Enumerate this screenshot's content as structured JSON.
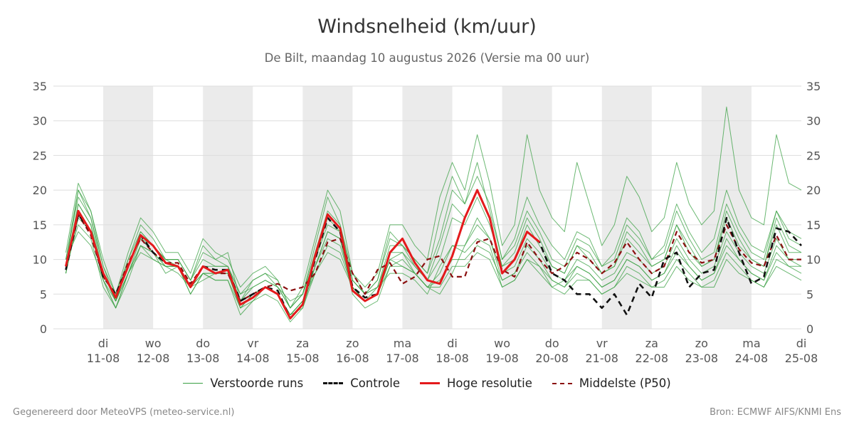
{
  "title": "Windsnelheid (km/uur)",
  "subtitle": "De Bilt, maandag 10 augustus 2026 (Versie ma 00 uur)",
  "footer_left": "Gegenereerd door MeteoVPS (meteo-service.nl)",
  "footer_right": "Bron: ECMWF AIFS/KNMI Ens",
  "legend": [
    {
      "label": "Verstoorde runs",
      "color": "#39a043",
      "style": "thin"
    },
    {
      "label": "Controle",
      "color": "#111111",
      "style": "dashed"
    },
    {
      "label": "Hoge resolutie",
      "color": "#e41a1c",
      "style": "solid"
    },
    {
      "label": "Middelste (P50)",
      "color": "#8b1010",
      "style": "dashed"
    }
  ],
  "colors": {
    "ensemble": "#39a043",
    "control": "#111111",
    "hires": "#e41a1c",
    "median": "#8b1010",
    "shade": "#ebebeb",
    "grid": "#dddddd"
  },
  "chart_data": {
    "type": "line",
    "ylim": [
      0,
      35
    ],
    "yticks": [
      0,
      5,
      10,
      15,
      20,
      25,
      30,
      35
    ],
    "xlim": [
      "2026-08-10T00:00",
      "2026-08-25T00:00"
    ],
    "shaded_days": [
      "2026-08-11",
      "2026-08-13",
      "2026-08-15",
      "2026-08-17",
      "2026-08-19",
      "2026-08-21",
      "2026-08-23"
    ],
    "x_tick_labels": [
      {
        "date": "2026-08-11",
        "day": "di",
        "label": "11-08"
      },
      {
        "date": "2026-08-12",
        "day": "wo",
        "label": "12-08"
      },
      {
        "date": "2026-08-13",
        "day": "do",
        "label": "13-08"
      },
      {
        "date": "2026-08-14",
        "day": "vr",
        "label": "14-08"
      },
      {
        "date": "2026-08-15",
        "day": "za",
        "label": "15-08"
      },
      {
        "date": "2026-08-16",
        "day": "zo",
        "label": "16-08"
      },
      {
        "date": "2026-08-17",
        "day": "ma",
        "label": "17-08"
      },
      {
        "date": "2026-08-18",
        "day": "di",
        "label": "18-08"
      },
      {
        "date": "2026-08-19",
        "day": "wo",
        "label": "19-08"
      },
      {
        "date": "2026-08-20",
        "day": "do",
        "label": "20-08"
      },
      {
        "date": "2026-08-21",
        "day": "vr",
        "label": "21-08"
      },
      {
        "date": "2026-08-22",
        "day": "za",
        "label": "22-08"
      },
      {
        "date": "2026-08-23",
        "day": "zo",
        "label": "23-08"
      },
      {
        "date": "2026-08-24",
        "day": "ma",
        "label": "24-08"
      },
      {
        "date": "2026-08-25",
        "day": "di",
        "label": "25-08"
      }
    ],
    "x": [
      "2026-08-10T06:00",
      "2026-08-10T12:00",
      "2026-08-10T18:00",
      "2026-08-11T00:00",
      "2026-08-11T06:00",
      "2026-08-11T12:00",
      "2026-08-11T18:00",
      "2026-08-12T00:00",
      "2026-08-12T06:00",
      "2026-08-12T12:00",
      "2026-08-12T18:00",
      "2026-08-13T00:00",
      "2026-08-13T06:00",
      "2026-08-13T12:00",
      "2026-08-13T18:00",
      "2026-08-14T00:00",
      "2026-08-14T06:00",
      "2026-08-14T12:00",
      "2026-08-14T18:00",
      "2026-08-15T00:00",
      "2026-08-15T06:00",
      "2026-08-15T12:00",
      "2026-08-15T18:00",
      "2026-08-16T00:00",
      "2026-08-16T06:00",
      "2026-08-16T12:00",
      "2026-08-16T18:00",
      "2026-08-17T00:00",
      "2026-08-17T06:00",
      "2026-08-17T12:00",
      "2026-08-17T18:00",
      "2026-08-18T00:00",
      "2026-08-18T06:00",
      "2026-08-18T12:00",
      "2026-08-18T18:00",
      "2026-08-19T00:00",
      "2026-08-19T06:00",
      "2026-08-19T12:00",
      "2026-08-19T18:00",
      "2026-08-20T00:00",
      "2026-08-20T06:00",
      "2026-08-20T12:00",
      "2026-08-20T18:00",
      "2026-08-21T00:00",
      "2026-08-21T06:00",
      "2026-08-21T12:00",
      "2026-08-21T18:00",
      "2026-08-22T00:00",
      "2026-08-22T06:00",
      "2026-08-22T12:00",
      "2026-08-22T18:00",
      "2026-08-23T00:00",
      "2026-08-23T06:00",
      "2026-08-23T12:00",
      "2026-08-23T18:00",
      "2026-08-24T00:00",
      "2026-08-24T06:00",
      "2026-08-24T12:00",
      "2026-08-24T18:00",
      "2026-08-25T00:00"
    ],
    "series": [
      {
        "name": "Hoge resolutie",
        "values": [
          9,
          17,
          14,
          8,
          4.5,
          9,
          13.5,
          12,
          9.5,
          9,
          6,
          9,
          8,
          8.5,
          3.5,
          4.5,
          6,
          5,
          1.5,
          3.5,
          10.5,
          16.5,
          14.5,
          5.5,
          4,
          5,
          11,
          13,
          9.5,
          7,
          6.5,
          10.5,
          16,
          20,
          16,
          8,
          10,
          14,
          12.5,
          null,
          null,
          null,
          null,
          null,
          null,
          null,
          null,
          null,
          null,
          null,
          null,
          null,
          null,
          null,
          null,
          null,
          null,
          null,
          null,
          null
        ]
      },
      {
        "name": "Controle",
        "values": [
          8.5,
          16.5,
          14,
          7.5,
          5,
          9,
          13.5,
          11,
          9.5,
          9,
          6,
          9,
          8.5,
          8.5,
          4,
          5,
          6,
          5.5,
          1.5,
          3.5,
          10,
          16,
          14,
          6,
          4.5,
          5,
          11,
          13,
          9.5,
          7,
          6.5,
          10.5,
          16,
          20,
          16,
          8,
          10,
          14,
          12.5,
          8,
          7,
          5,
          5,
          3,
          5,
          2,
          6.5,
          4.5,
          10,
          11,
          6,
          8,
          8.5,
          16,
          11,
          6.5,
          7.5,
          14.5,
          14,
          12
        ]
      },
      {
        "name": "Middelste (P50)",
        "values": [
          9,
          16.5,
          13.5,
          7.5,
          5,
          9.5,
          13,
          11,
          9.5,
          9.5,
          6.5,
          9,
          8,
          8,
          4,
          5,
          6,
          6.5,
          5.5,
          6,
          8,
          12.5,
          13,
          8,
          5,
          8.5,
          9.5,
          6.5,
          7.5,
          10,
          10.5,
          7.5,
          7.5,
          12.5,
          13,
          8.5,
          7.5,
          12.5,
          10,
          8,
          9,
          11,
          10,
          8,
          9.5,
          12.5,
          10,
          8,
          9,
          14,
          11,
          9.5,
          10,
          15,
          11.5,
          9.5,
          9,
          13.5,
          10,
          10
        ]
      },
      {
        "name": "",
        "values": [
          10,
          20,
          16,
          9,
          4,
          10,
          15,
          13,
          10,
          10,
          7,
          12,
          10,
          11,
          4,
          7,
          8,
          6,
          3,
          5,
          12,
          19,
          15,
          7,
          5,
          7,
          14,
          12,
          10,
          8,
          16,
          22,
          18,
          24,
          17,
          10,
          13,
          19,
          15,
          12,
          10,
          14,
          13,
          9,
          11,
          16,
          14,
          10,
          12,
          18,
          14,
          11,
          13,
          20,
          15,
          12,
          11,
          17,
          14,
          13
        ]
      },
      {
        "name": "",
        "values": [
          8,
          18,
          15,
          7,
          4,
          8,
          12,
          11,
          8,
          9,
          5,
          8,
          7,
          7,
          2,
          4,
          5,
          4,
          1,
          3,
          9,
          14,
          13,
          5,
          3,
          4,
          9,
          10,
          8,
          6,
          5,
          8,
          12,
          15,
          13,
          7,
          8,
          12,
          10,
          7,
          6,
          8,
          7,
          5,
          6,
          9,
          8,
          6,
          7,
          10,
          8,
          6,
          7,
          11,
          9,
          7,
          6,
          10,
          9,
          8
        ]
      },
      {
        "name": "",
        "values": [
          11,
          21,
          17,
          10,
          5,
          11,
          16,
          14,
          11,
          11,
          8,
          13,
          11,
          10,
          6,
          8,
          9,
          7,
          3,
          6,
          13,
          20,
          17,
          8,
          6,
          8,
          15,
          15,
          12,
          10,
          19,
          24,
          20,
          28,
          21,
          12,
          15,
          28,
          20,
          16,
          14,
          24,
          18,
          12,
          15,
          22,
          19,
          14,
          16,
          24,
          18,
          15,
          17,
          32,
          20,
          16,
          15,
          28,
          21,
          20
        ]
      },
      {
        "name": "",
        "values": [
          9,
          15,
          13,
          6,
          3,
          8,
          11,
          10,
          9,
          8,
          6,
          7,
          8,
          8,
          3,
          5,
          6,
          5,
          2,
          4,
          8,
          11,
          10,
          6,
          4,
          6,
          8,
          8,
          7,
          5,
          9,
          12,
          11,
          13,
          12,
          6,
          7,
          10,
          9,
          6,
          7,
          9,
          8,
          6,
          7,
          10,
          9,
          7,
          8,
          11,
          9,
          7,
          8,
          12,
          10,
          8,
          7,
          11,
          9,
          9
        ]
      },
      {
        "name": "",
        "values": [
          10,
          19,
          16,
          8,
          4,
          9,
          14,
          12,
          10,
          10,
          7,
          10,
          9,
          9,
          5,
          6,
          7,
          6,
          4,
          5,
          10,
          15,
          14,
          7,
          5,
          6,
          11,
          11,
          9,
          7,
          12,
          18,
          16,
          20,
          16,
          9,
          11,
          16,
          13,
          9,
          8,
          12,
          11,
          8,
          9,
          14,
          12,
          9,
          10,
          15,
          12,
          9,
          10,
          17,
          13,
          10,
          9,
          16,
          12,
          11
        ]
      },
      {
        "name": "",
        "values": [
          8,
          16,
          14,
          8,
          4,
          8,
          12,
          11,
          9,
          9,
          6,
          8,
          8,
          8,
          4,
          5,
          6,
          5,
          2,
          4,
          9,
          13,
          12,
          6,
          4,
          5,
          10,
          9,
          8,
          6,
          7,
          10,
          10,
          12,
          11,
          7,
          8,
          11,
          9,
          7,
          6,
          9,
          8,
          6,
          7,
          10,
          9,
          7,
          8,
          12,
          9,
          7,
          8,
          13,
          10,
          8,
          7,
          12,
          10,
          9
        ]
      },
      {
        "name": "",
        "values": [
          9,
          20,
          17,
          9,
          5,
          10,
          14,
          12,
          10,
          10,
          7,
          11,
          10,
          9,
          5,
          7,
          8,
          7,
          3,
          5,
          11,
          17,
          15,
          8,
          5,
          7,
          13,
          12,
          10,
          8,
          13,
          20,
          18,
          22,
          18,
          10,
          12,
          17,
          14,
          10,
          9,
          13,
          12,
          9,
          10,
          15,
          13,
          10,
          11,
          17,
          13,
          10,
          11,
          18,
          14,
          11,
          10,
          17,
          13,
          12
        ]
      },
      {
        "name": "",
        "values": [
          10,
          14,
          12,
          7,
          3,
          7,
          12,
          10,
          9,
          9,
          5,
          8,
          7,
          7,
          3,
          4,
          6,
          5,
          2,
          3,
          8,
          12,
          11,
          6,
          4,
          5,
          9,
          9,
          8,
          6,
          6,
          9,
          9,
          11,
          10,
          6,
          7,
          10,
          8,
          6,
          5,
          7,
          7,
          5,
          6,
          8,
          7,
          6,
          6,
          9,
          7,
          6,
          6,
          10,
          8,
          7,
          6,
          9,
          8,
          7
        ]
      },
      {
        "name": "",
        "values": [
          9,
          18,
          15,
          8,
          4,
          9,
          13,
          12,
          10,
          9,
          6,
          9,
          9,
          9,
          4,
          6,
          7,
          6,
          3,
          5,
          10,
          16,
          14,
          7,
          5,
          6,
          12,
          12,
          9,
          7,
          10,
          16,
          15,
          19,
          15,
          9,
          10,
          15,
          12,
          9,
          8,
          12,
          10,
          8,
          9,
          13,
          11,
          9,
          10,
          15,
          11,
          9,
          10,
          16,
          12,
          10,
          9,
          15,
          11,
          11
        ]
      },
      {
        "name": "",
        "values": [
          8,
          17,
          14,
          7,
          3,
          8,
          13,
          11,
          9,
          9,
          6,
          8,
          8,
          8,
          3,
          5,
          6,
          5,
          2,
          4,
          9,
          14,
          13,
          6,
          4,
          5,
          10,
          11,
          8,
          6,
          8,
          12,
          12,
          16,
          13,
          8,
          9,
          13,
          11,
          8,
          7,
          10,
          9,
          7,
          8,
          11,
          10,
          8,
          9,
          13,
          10,
          8,
          9,
          14,
          11,
          9,
          8,
          13,
          10,
          10
        ]
      }
    ]
  }
}
